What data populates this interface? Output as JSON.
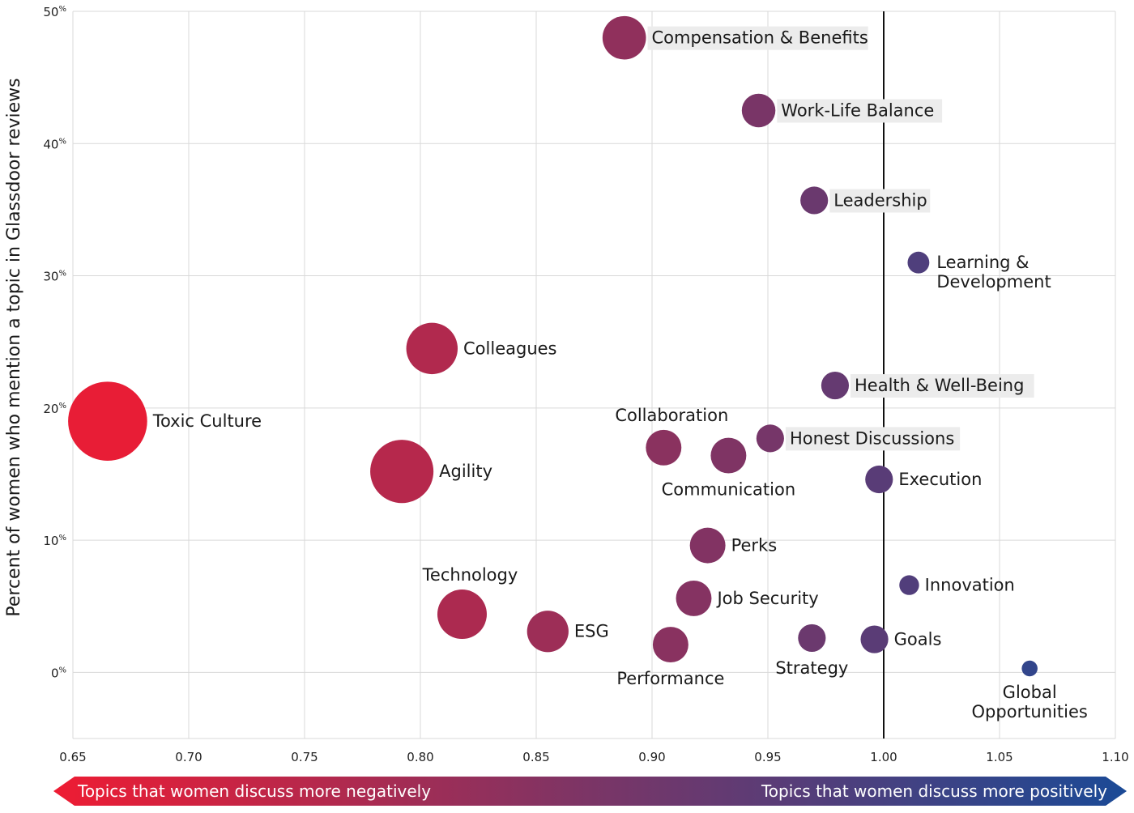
{
  "chart_data": {
    "type": "scatter",
    "title": "",
    "xlabel": "",
    "ylabel": "Percent of women who mention a topic in Glassdoor reviews",
    "xlim": [
      0.65,
      1.1
    ],
    "ylim": [
      -5,
      50
    ],
    "x_ticks": [
      "0.65",
      "0.70",
      "0.75",
      "0.80",
      "0.85",
      "0.90",
      "0.95",
      "1.00",
      "1.05",
      "1.10"
    ],
    "y_ticks": [
      "0",
      "10",
      "20",
      "30",
      "40",
      "50"
    ],
    "y_tick_suffix": "%",
    "reference_line_x": 1.0,
    "arrow_left_label": "Topics that women discuss more negatively",
    "arrow_right_label": "Topics that women discuss more positively",
    "colors": {
      "negative": "#ee1c33",
      "mid": "#7b3566",
      "positive": "#1b4a96"
    },
    "points": [
      {
        "label": "Compensation & Benefits",
        "x": 0.888,
        "y": 48.0,
        "size": 2.2,
        "highlight": true
      },
      {
        "label": "Work-Life Balance",
        "x": 0.946,
        "y": 42.5,
        "size": 1.7,
        "highlight": true
      },
      {
        "label": "Leadership",
        "x": 0.97,
        "y": 35.7,
        "size": 1.4,
        "highlight": true
      },
      {
        "label": "Learning & Development",
        "x": 1.015,
        "y": 31.0,
        "size": 1.1,
        "highlight": false
      },
      {
        "label": "Colleagues",
        "x": 0.805,
        "y": 24.5,
        "size": 2.6,
        "highlight": false
      },
      {
        "label": "Health & Well-Being",
        "x": 0.979,
        "y": 21.7,
        "size": 1.4,
        "highlight": true
      },
      {
        "label": "Toxic Culture",
        "x": 0.665,
        "y": 19.0,
        "size": 4.0,
        "highlight": false
      },
      {
        "label": "Honest Discussions",
        "x": 0.951,
        "y": 17.7,
        "size": 1.4,
        "highlight": true
      },
      {
        "label": "Collaboration",
        "x": 0.905,
        "y": 17.0,
        "size": 1.8,
        "highlight": false
      },
      {
        "label": "Communication",
        "x": 0.933,
        "y": 16.4,
        "size": 1.8,
        "highlight": false
      },
      {
        "label": "Agility",
        "x": 0.792,
        "y": 15.2,
        "size": 3.2,
        "highlight": false
      },
      {
        "label": "Execution",
        "x": 0.998,
        "y": 14.6,
        "size": 1.4,
        "highlight": false
      },
      {
        "label": "Perks",
        "x": 0.924,
        "y": 9.6,
        "size": 1.8,
        "highlight": false
      },
      {
        "label": "Innovation",
        "x": 1.011,
        "y": 6.6,
        "size": 1.0,
        "highlight": false
      },
      {
        "label": "Job Security",
        "x": 0.918,
        "y": 5.6,
        "size": 1.8,
        "highlight": false
      },
      {
        "label": "Technology",
        "x": 0.818,
        "y": 4.4,
        "size": 2.5,
        "highlight": false
      },
      {
        "label": "ESG",
        "x": 0.855,
        "y": 3.1,
        "size": 2.1,
        "highlight": false
      },
      {
        "label": "Strategy",
        "x": 0.969,
        "y": 2.6,
        "size": 1.4,
        "highlight": false
      },
      {
        "label": "Goals",
        "x": 0.996,
        "y": 2.5,
        "size": 1.4,
        "highlight": false
      },
      {
        "label": "Performance",
        "x": 0.908,
        "y": 2.1,
        "size": 1.8,
        "highlight": false
      },
      {
        "label": "Global Opportunities",
        "x": 1.063,
        "y": 0.3,
        "size": 0.8,
        "highlight": false
      }
    ]
  }
}
